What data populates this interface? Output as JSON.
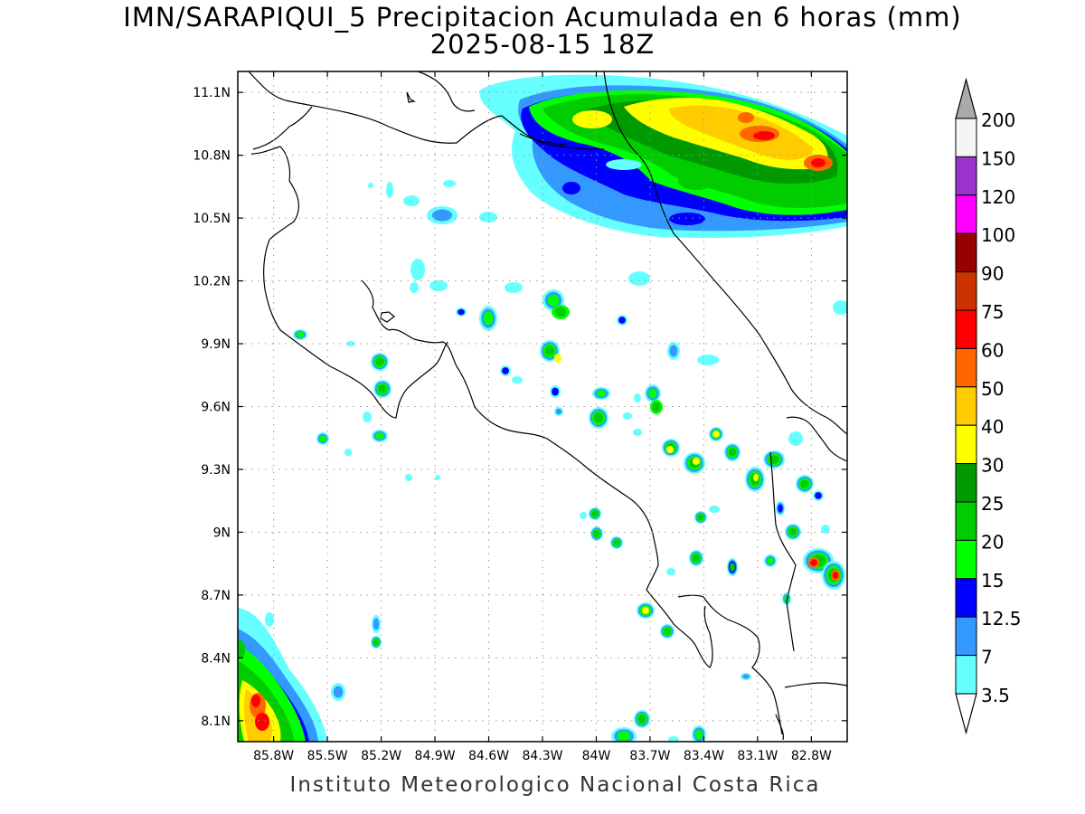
{
  "title": {
    "line1": "IMN/SARAPIQUI_5 Precipitacion Acumulada en 6 horas (mm)",
    "line2": "2025-08-15 18Z"
  },
  "footer": "Instituto Meteorologico Nacional Costa Rica",
  "map": {
    "lon_range": [
      -86.0,
      -82.6
    ],
    "lat_range": [
      8.0,
      11.2
    ],
    "y_ticks": [
      "11.1N",
      "10.8N",
      "10.5N",
      "10.2N",
      "9.9N",
      "9.6N",
      "9.3N",
      "9N",
      "8.7N",
      "8.4N",
      "8.1N"
    ],
    "x_ticks": [
      "85.8W",
      "85.5W",
      "85.2W",
      "84.9W",
      "84.6W",
      "84.3W",
      "84W",
      "83.7W",
      "83.4W",
      "83.1W",
      "82.8W"
    ],
    "grid": "dotted"
  },
  "legend": {
    "labels": [
      "200",
      "150",
      "120",
      "100",
      "90",
      "75",
      "60",
      "50",
      "40",
      "30",
      "25",
      "20",
      "15",
      "12.5",
      "7",
      "3.5"
    ],
    "colors": [
      "#f5f5f5",
      "#9933cc",
      "#ff00ff",
      "#990000",
      "#cc3300",
      "#ff0000",
      "#ff6600",
      "#ffcc00",
      "#ffff00",
      "#009900",
      "#00cc00",
      "#00ff00",
      "#0000ff",
      "#3399ff",
      "#66ffff"
    ],
    "arrow_top_color": "#aaaaaa",
    "arrow_bottom_color": "#ffffff"
  },
  "colors": {
    "c3_5": "#66ffff",
    "c7": "#3399ff",
    "c12_5": "#0000ff",
    "c15": "#00ff00",
    "c20": "#00cc00",
    "c25": "#009900",
    "c30": "#ffff00",
    "c40": "#ffcc00",
    "c50": "#ff6600",
    "c60": "#ff0000"
  }
}
